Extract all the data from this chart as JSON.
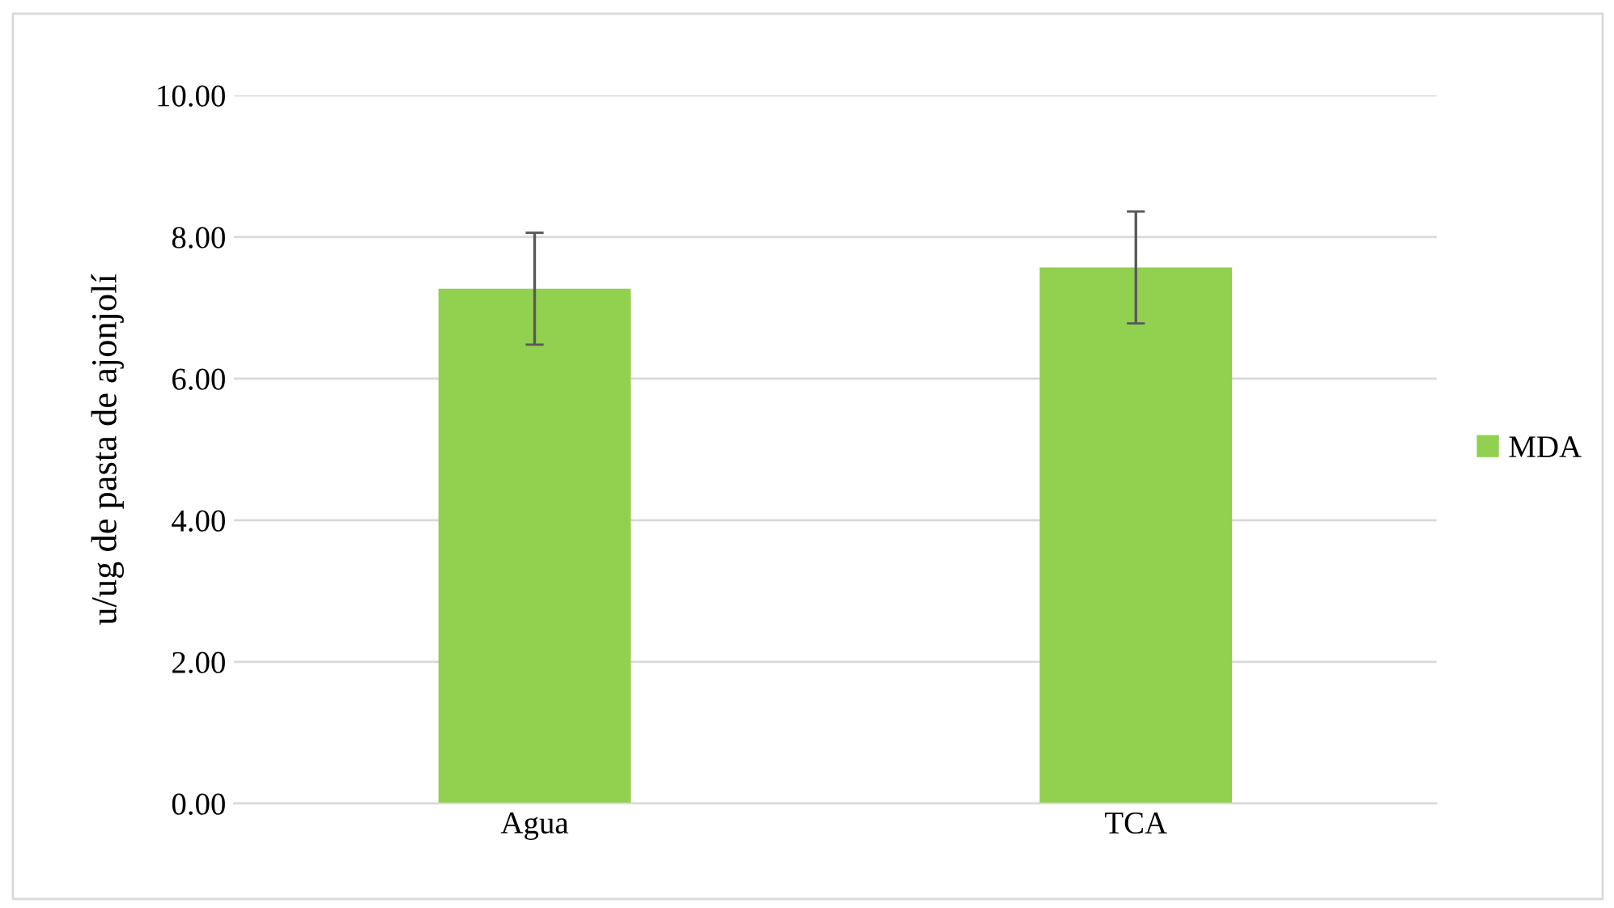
{
  "chart_data": {
    "type": "bar",
    "ylabel": "u/ug de pasta de ajonjolí",
    "categories": [
      "Agua",
      "TCA"
    ],
    "series": [
      {
        "name": "MDA",
        "color": "#92d050",
        "values": [
          7.27,
          7.57
        ],
        "errors": [
          0.79,
          0.79
        ]
      }
    ],
    "ylim": [
      0,
      10
    ],
    "yticks": [
      {
        "value": 0,
        "label": "0.00"
      },
      {
        "value": 2,
        "label": "2.00"
      },
      {
        "value": 4,
        "label": "4.00"
      },
      {
        "value": 6,
        "label": "6.00"
      },
      {
        "value": 8,
        "label": "8.00"
      },
      {
        "value": 10,
        "label": "10.00"
      }
    ],
    "grid": "y",
    "legend": "right"
  }
}
